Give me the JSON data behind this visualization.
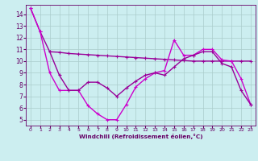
{
  "line1_smooth": {
    "x": [
      0,
      1,
      2,
      3,
      4,
      5,
      6,
      7,
      8,
      9,
      10,
      11,
      12,
      13,
      14,
      15,
      16,
      17,
      18,
      19,
      20,
      21,
      22,
      23
    ],
    "y": [
      14.5,
      12.5,
      10.8,
      10.75,
      10.65,
      10.6,
      10.55,
      10.5,
      10.45,
      10.4,
      10.35,
      10.3,
      10.25,
      10.2,
      10.15,
      10.1,
      10.05,
      10.0,
      10.0,
      10.0,
      10.0,
      10.0,
      10.0,
      10.0
    ],
    "color": "#990099",
    "linewidth": 1.0
  },
  "line2_jagged": {
    "x": [
      0,
      1,
      2,
      3,
      4,
      5,
      6,
      7,
      8,
      9,
      10,
      11,
      12,
      13,
      14,
      15,
      16,
      17,
      18,
      19,
      20,
      21,
      22,
      23
    ],
    "y": [
      14.5,
      12.5,
      9.0,
      7.5,
      7.5,
      7.5,
      6.2,
      5.5,
      5.0,
      5.0,
      6.3,
      7.8,
      8.5,
      9.0,
      9.2,
      11.8,
      10.5,
      10.5,
      11.0,
      11.0,
      10.1,
      10.0,
      8.5,
      6.3
    ],
    "color": "#cc00cc",
    "linewidth": 1.0
  },
  "line3_lower": {
    "x": [
      2,
      3,
      4,
      5,
      6,
      7,
      8,
      9,
      10,
      11,
      12,
      13,
      14,
      15,
      16,
      17,
      18,
      19,
      20,
      21,
      22,
      23
    ],
    "y": [
      10.8,
      8.8,
      7.5,
      7.5,
      8.2,
      8.2,
      7.7,
      7.0,
      7.7,
      8.3,
      8.8,
      9.0,
      8.8,
      9.5,
      10.2,
      10.5,
      10.8,
      10.8,
      9.8,
      9.5,
      7.5,
      6.3
    ],
    "color": "#990099",
    "linewidth": 1.0
  },
  "xlabel": "Windchill (Refroidissement éolien,°C)",
  "xlim": [
    -0.5,
    23.5
  ],
  "ylim": [
    4.5,
    14.8
  ],
  "yticks": [
    5,
    6,
    7,
    8,
    9,
    10,
    11,
    12,
    13,
    14
  ],
  "xticks": [
    0,
    1,
    2,
    3,
    4,
    5,
    6,
    7,
    8,
    9,
    10,
    11,
    12,
    13,
    14,
    15,
    16,
    17,
    18,
    19,
    20,
    21,
    22,
    23
  ],
  "bg_color": "#cceef0",
  "grid_color": "#aacccc",
  "axes_color": "#660066",
  "marker": "+",
  "markersize": 3,
  "markeredgewidth": 0.8
}
